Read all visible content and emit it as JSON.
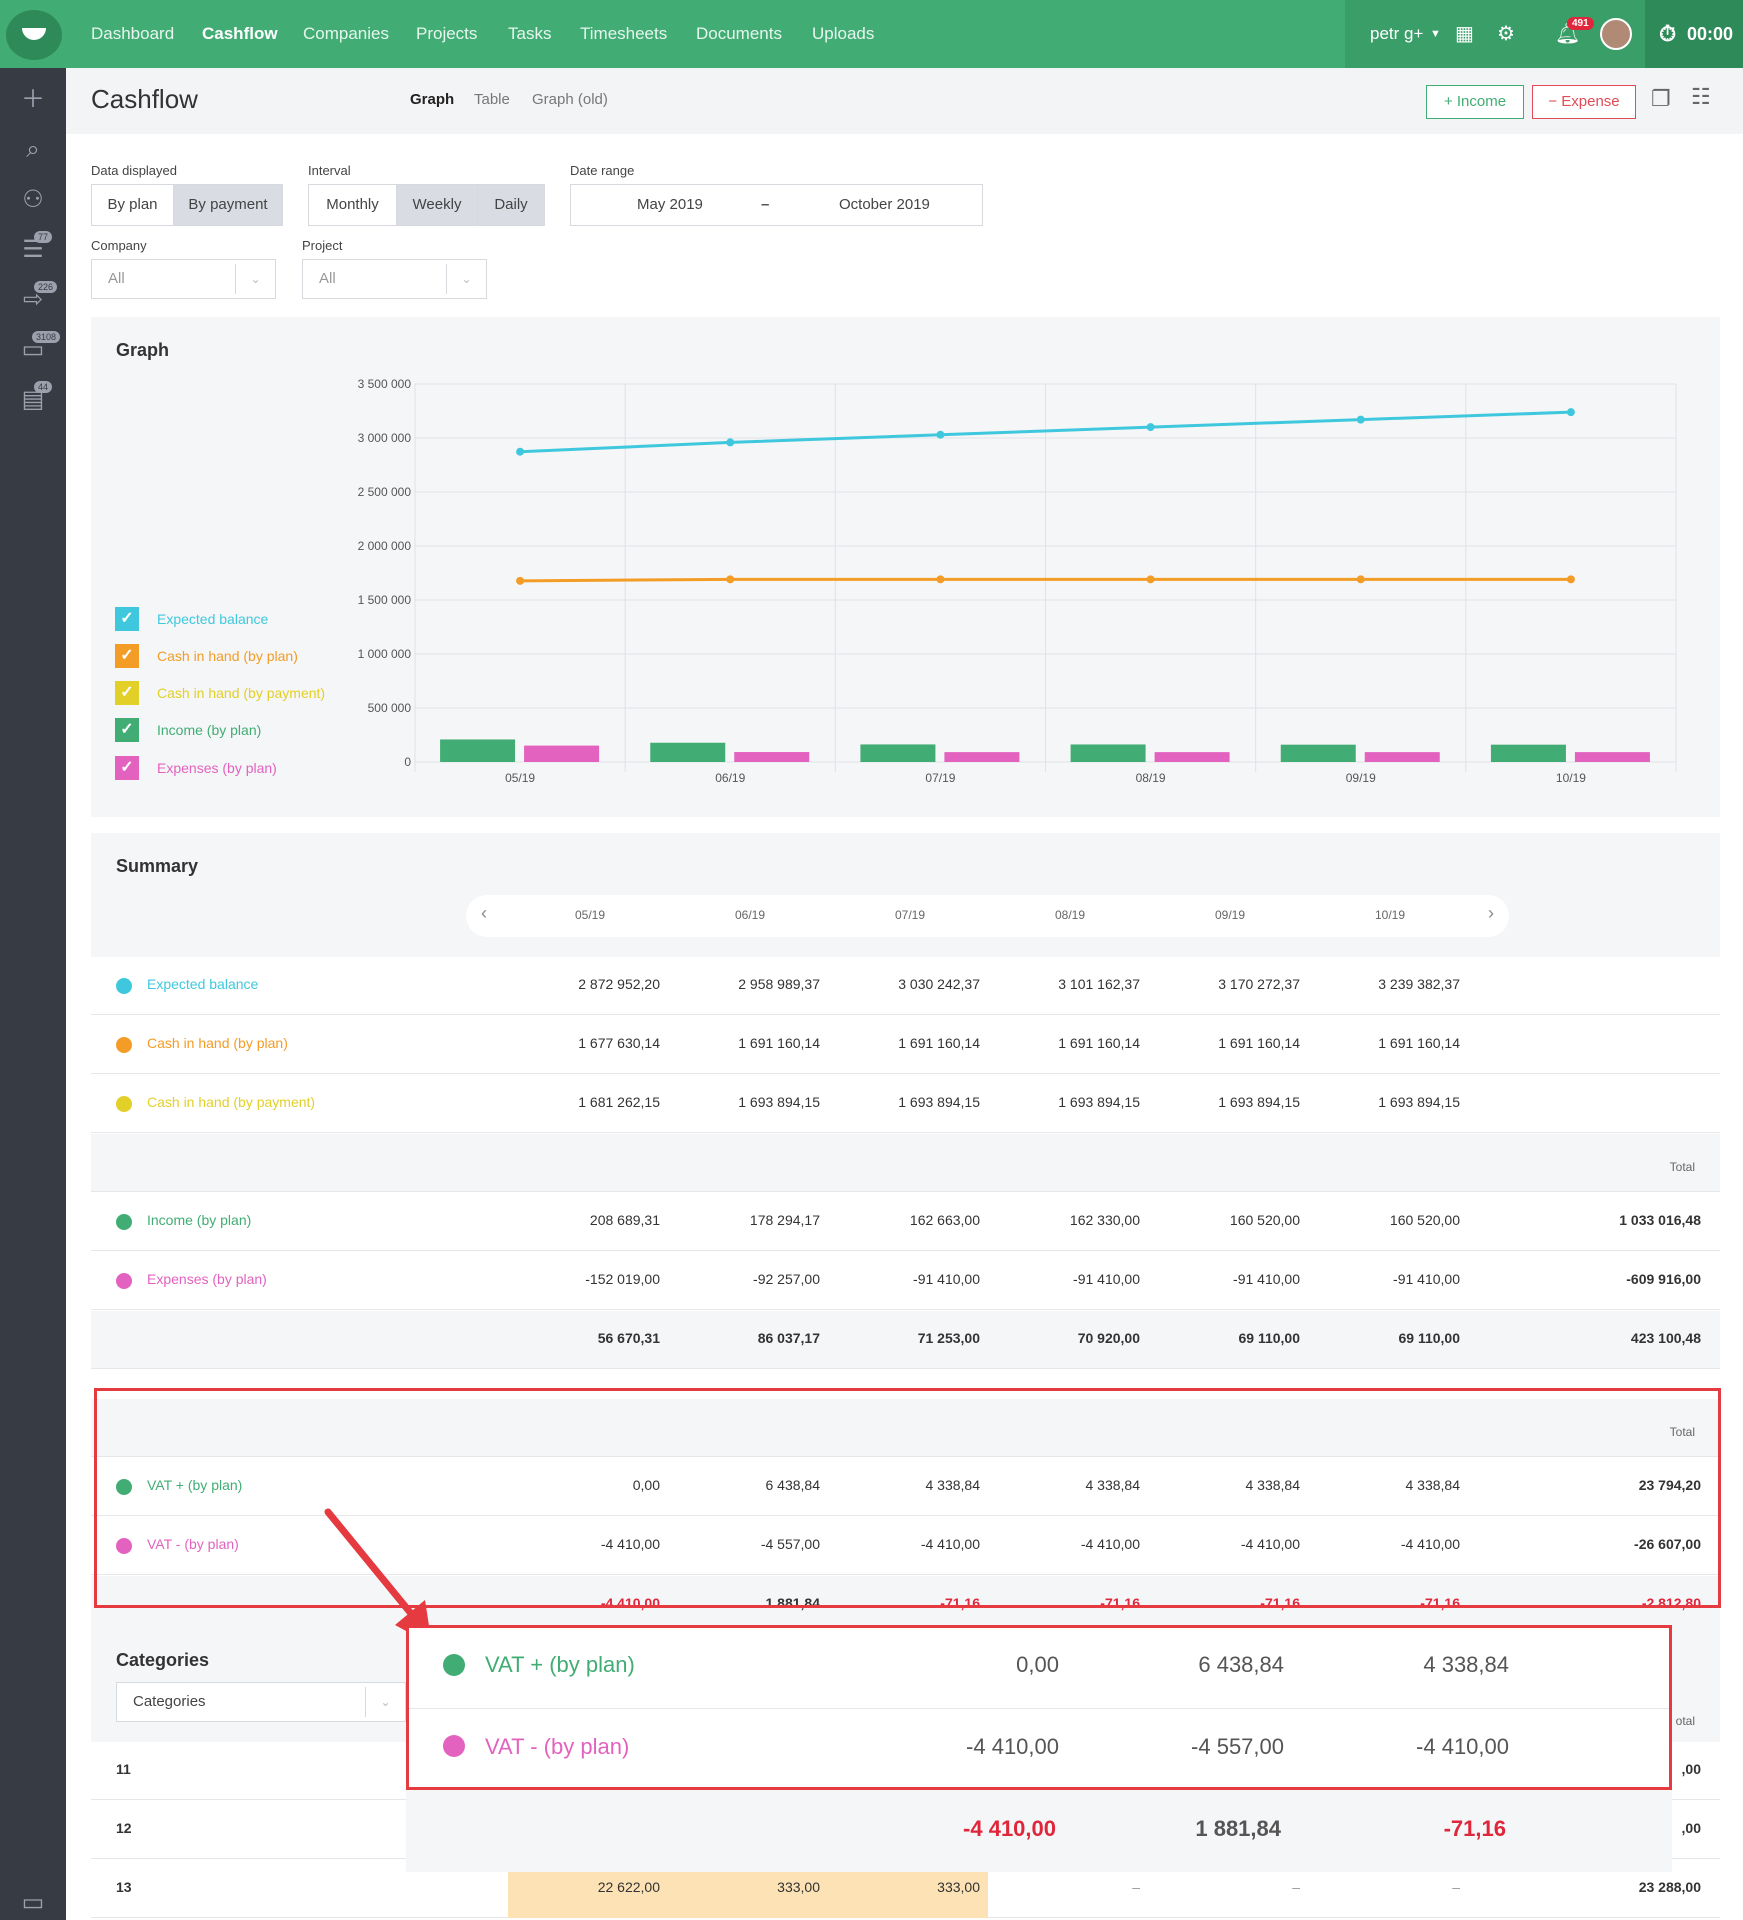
{
  "nav": {
    "items": [
      "Dashboard",
      "Cashflow",
      "Companies",
      "Projects",
      "Tasks",
      "Timesheets",
      "Documents",
      "Uploads"
    ],
    "active": "Cashflow",
    "user": "petr g+",
    "notifications": "491",
    "timer": "00:00"
  },
  "sidebar": {
    "badges": [
      "77",
      "226",
      "3108",
      "44"
    ]
  },
  "header": {
    "title": "Cashflow",
    "tabs": [
      "Graph",
      "Table",
      "Graph (old)"
    ],
    "income_btn": "+ Income",
    "expense_btn": "− Expense"
  },
  "filters": {
    "data_displayed_label": "Data displayed",
    "data_options": [
      "By plan",
      "By payment"
    ],
    "interval_label": "Interval",
    "interval_options": [
      "Monthly",
      "Weekly",
      "Daily"
    ],
    "date_range_label": "Date range",
    "date_from": "May 2019",
    "date_to": "October 2019",
    "company_label": "Company",
    "company_value": "All",
    "project_label": "Project",
    "project_value": "All"
  },
  "graph": {
    "title": "Graph",
    "legend": [
      {
        "label": "Expected balance",
        "color": "#3fc8dd"
      },
      {
        "label": "Cash in hand (by plan)",
        "color": "#f39c26"
      },
      {
        "label": "Cash in hand (by payment)",
        "color": "#e2cf27"
      },
      {
        "label": "Income (by plan)",
        "color": "#41ad74"
      },
      {
        "label": "Expenses (by plan)",
        "color": "#e362bf"
      }
    ]
  },
  "chart_data": {
    "type": "line",
    "categories": [
      "05/19",
      "06/19",
      "07/19",
      "08/19",
      "09/19",
      "10/19"
    ],
    "ylim": [
      0,
      3500000
    ],
    "yticks": [
      "3 500 000",
      "3 000 000",
      "2 500 000",
      "2 000 000",
      "1 500 000",
      "1 000 000",
      "500 000",
      "0"
    ],
    "series": [
      {
        "name": "Expected balance",
        "type": "line",
        "color": "#3fc8dd",
        "values": [
          2872952.2,
          2958989.37,
          3030242.37,
          3101162.37,
          3170272.37,
          3239382.37
        ]
      },
      {
        "name": "Cash in hand (by plan)",
        "type": "line",
        "color": "#f39c26",
        "values": [
          1677630.14,
          1691160.14,
          1691160.14,
          1691160.14,
          1691160.14,
          1691160.14
        ]
      },
      {
        "name": "Income (by plan)",
        "type": "bar",
        "color": "#41ad74",
        "values": [
          208689.31,
          178294.17,
          162663.0,
          162330.0,
          160520.0,
          160520.0
        ]
      },
      {
        "name": "Expenses (by plan)",
        "type": "bar",
        "color": "#e362bf",
        "values": [
          152019.0,
          92257.0,
          91410.0,
          91410.0,
          91410.0,
          91410.0
        ]
      }
    ]
  },
  "summary": {
    "title": "Summary",
    "periods": [
      "05/19",
      "06/19",
      "07/19",
      "08/19",
      "09/19",
      "10/19"
    ],
    "total_label": "Total",
    "balances": [
      {
        "label": "Expected balance",
        "color": "#3fc8dd",
        "values": [
          "2 872 952,20",
          "2 958 989,37",
          "3 030 242,37",
          "3 101 162,37",
          "3 170 272,37",
          "3 239 382,37"
        ]
      },
      {
        "label": "Cash in hand (by plan)",
        "color": "#f39c26",
        "values": [
          "1 677 630,14",
          "1 691 160,14",
          "1 691 160,14",
          "1 691 160,14",
          "1 691 160,14",
          "1 691 160,14"
        ]
      },
      {
        "label": "Cash in hand (by payment)",
        "color": "#e2cf27",
        "values": [
          "1 681 262,15",
          "1 693 894,15",
          "1 693 894,15",
          "1 693 894,15",
          "1 693 894,15",
          "1 693 894,15"
        ]
      }
    ],
    "flows": [
      {
        "label": "Income (by plan)",
        "color": "#41ad74",
        "values": [
          "208 689,31",
          "178 294,17",
          "162 663,00",
          "162 330,00",
          "160 520,00",
          "160 520,00"
        ],
        "total": "1 033 016,48"
      },
      {
        "label": "Expenses (by plan)",
        "color": "#e362bf",
        "values": [
          "-152 019,00",
          "-92 257,00",
          "-91 410,00",
          "-91 410,00",
          "-91 410,00",
          "-91 410,00"
        ],
        "total": "-609 916,00"
      }
    ],
    "flows_sum": {
      "values": [
        "56 670,31",
        "86 037,17",
        "71 253,00",
        "70 920,00",
        "69 110,00",
        "69 110,00"
      ],
      "total": "423 100,48"
    },
    "vat": [
      {
        "label": "VAT + (by plan)",
        "color": "#41ad74",
        "values": [
          "0,00",
          "6 438,84",
          "4 338,84",
          "4 338,84",
          "4 338,84",
          "4 338,84"
        ],
        "total": "23 794,20"
      },
      {
        "label": "VAT - (by plan)",
        "color": "#e362bf",
        "values": [
          "-4 410,00",
          "-4 557,00",
          "-4 410,00",
          "-4 410,00",
          "-4 410,00",
          "-4 410,00"
        ],
        "total": "-26 607,00"
      }
    ],
    "vat_sum": {
      "values": [
        "-4 410,00",
        "1 881,84",
        "-71,16",
        "-71,16",
        "-71,16",
        "-71,16"
      ],
      "total": "-2 812,80"
    }
  },
  "categories": {
    "title": "Categories",
    "select_value": "Categories",
    "total_partial": "otal",
    "rows": [
      {
        "name": "11",
        "total_partial": ",00"
      },
      {
        "name": "12",
        "total_partial": ",00"
      },
      {
        "name": "13",
        "values": [
          "22 622,00",
          "333,00",
          "333,00",
          "–",
          "–",
          "–"
        ],
        "total": "23 288,00"
      }
    ]
  },
  "zoom": {
    "vat_plus": {
      "label": "VAT + (by plan)",
      "values": [
        "0,00",
        "6 438,84",
        "4 338,84"
      ]
    },
    "vat_minus": {
      "label": "VAT - (by plan)",
      "values": [
        "-4 410,00",
        "-4 557,00",
        "-4 410,00"
      ]
    },
    "sum": [
      "-4 410,00",
      "1 881,84",
      "-71,16"
    ]
  }
}
